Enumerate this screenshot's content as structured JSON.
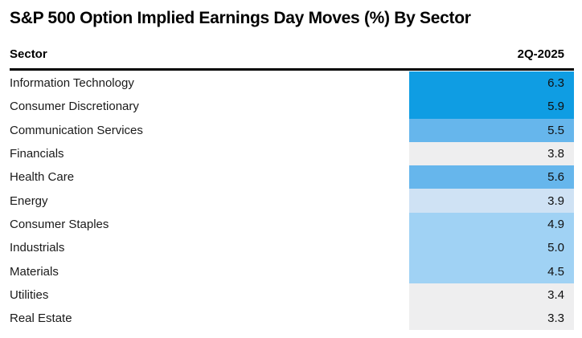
{
  "title": "S&P 500 Option Implied Earnings Day Moves (%) By Sector",
  "table": {
    "header": {
      "sector_label": "Sector",
      "period_label": "2Q-2025"
    },
    "rows": [
      {
        "label": "Information Technology",
        "value": "6.3",
        "color": "#0f9de3"
      },
      {
        "label": "Consumer Discretionary",
        "value": "5.9",
        "color": "#0f9de3"
      },
      {
        "label": "Communication Services",
        "value": "5.5",
        "color": "#66b6ec"
      },
      {
        "label": "Financials",
        "value": "3.8",
        "color": "#eeeeef"
      },
      {
        "label": "Health Care",
        "value": "5.6",
        "color": "#66b6ec"
      },
      {
        "label": "Energy",
        "value": "3.9",
        "color": "#cfe2f4"
      },
      {
        "label": "Consumer Staples",
        "value": "4.9",
        "color": "#a0d2f4"
      },
      {
        "label": "Industrials",
        "value": "5.0",
        "color": "#a0d2f4"
      },
      {
        "label": "Materials",
        "value": "4.5",
        "color": "#a0d2f4"
      },
      {
        "label": "Utilities",
        "value": "3.4",
        "color": "#eeeeef"
      },
      {
        "label": "Real Estate",
        "value": "3.3",
        "color": "#eeeeef"
      }
    ]
  },
  "palette": {
    "heat_darkest": "#0f9de3",
    "heat_medium": "#66b6ec",
    "heat_light": "#a0d2f4",
    "heat_pale": "#cfe2f4",
    "heat_neutral_gray": "#eeeeef",
    "rule_black": "#000000",
    "text_black": "#1a1a1a"
  },
  "chart_data": {
    "type": "heatmap",
    "title": "S&P 500 Option Implied Earnings Day Moves (%) By Sector",
    "columns": [
      "Sector",
      "2Q-2025"
    ],
    "categories": [
      "Information Technology",
      "Consumer Discretionary",
      "Communication Services",
      "Financials",
      "Health Care",
      "Energy",
      "Consumer Staples",
      "Industrials",
      "Materials",
      "Utilities",
      "Real Estate"
    ],
    "values": [
      6.3,
      5.9,
      5.5,
      3.8,
      5.6,
      3.9,
      4.9,
      5.0,
      4.5,
      3.4,
      3.3
    ],
    "value_unit": "%",
    "color_encoding": "cell background shaded blue by magnitude; grays for lowest values",
    "cell_colors": [
      "#0f9de3",
      "#0f9de3",
      "#66b6ec",
      "#eeeeef",
      "#66b6ec",
      "#cfe2f4",
      "#a0d2f4",
      "#a0d2f4",
      "#a0d2f4",
      "#eeeeef",
      "#eeeeef"
    ],
    "grid": false,
    "legend": false
  }
}
